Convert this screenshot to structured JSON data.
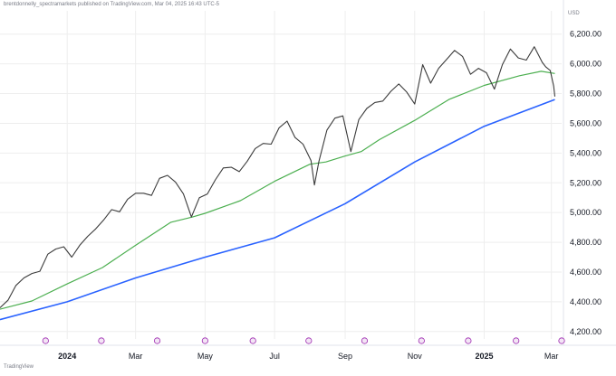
{
  "header": {
    "publish_note": "brentdonnelly_spectramarkets published on TradingView.com, Mar 04, 2025 16:43 UTC-5"
  },
  "footer": {
    "logo_text": "TradingView"
  },
  "colors": {
    "price": "#3b3b3b",
    "ma_fast": "#4caf50",
    "ma_slow": "#2962ff",
    "grid": "#eeeeee",
    "event_marker": "#9c27b0"
  },
  "chart_data": {
    "type": "line",
    "currency": "USD",
    "y_range": [
      4150,
      6320
    ],
    "y_ticks": [
      4200,
      4400,
      4600,
      4800,
      5000,
      5200,
      5400,
      5600,
      5800,
      6000,
      6200
    ],
    "y_tick_labels": [
      "4,200.00",
      "4,400.00",
      "4,600.00",
      "4,800.00",
      "5,000.00",
      "5,200.00",
      "5,400.00",
      "5,600.00",
      "5,800.00",
      "6,000.00",
      "6,200.00"
    ],
    "x_range": [
      "2023-11-03",
      "2025-03-10"
    ],
    "x_ticks": [
      {
        "date": "2024-01-01",
        "label": "2024",
        "bold": true
      },
      {
        "date": "2024-03-01",
        "label": "Mar",
        "bold": false
      },
      {
        "date": "2024-05-01",
        "label": "May",
        "bold": false
      },
      {
        "date": "2024-07-01",
        "label": "Jul",
        "bold": false
      },
      {
        "date": "2024-09-01",
        "label": "Sep",
        "bold": false
      },
      {
        "date": "2024-11-01",
        "label": "Nov",
        "bold": false
      },
      {
        "date": "2025-01-01",
        "label": "2025",
        "bold": true
      },
      {
        "date": "2025-03-01",
        "label": "Mar",
        "bold": false
      }
    ],
    "event_markers": [
      "2023-12-13",
      "2024-01-31",
      "2024-03-20",
      "2024-05-01",
      "2024-06-12",
      "2024-07-31",
      "2024-09-18",
      "2024-11-07",
      "2024-12-18",
      "2025-01-29",
      "2025-03-10"
    ],
    "series": [
      {
        "role": "price",
        "points": [
          [
            "2023-11-03",
            4360
          ],
          [
            "2023-11-10",
            4410
          ],
          [
            "2023-11-17",
            4510
          ],
          [
            "2023-11-24",
            4560
          ],
          [
            "2023-12-01",
            4590
          ],
          [
            "2023-12-08",
            4605
          ],
          [
            "2023-12-15",
            4720
          ],
          [
            "2023-12-22",
            4755
          ],
          [
            "2023-12-29",
            4770
          ],
          [
            "2024-01-05",
            4700
          ],
          [
            "2024-01-12",
            4780
          ],
          [
            "2024-01-19",
            4840
          ],
          [
            "2024-01-26",
            4890
          ],
          [
            "2024-02-02",
            4950
          ],
          [
            "2024-02-09",
            5020
          ],
          [
            "2024-02-16",
            5005
          ],
          [
            "2024-02-23",
            5090
          ],
          [
            "2024-03-01",
            5130
          ],
          [
            "2024-03-08",
            5130
          ],
          [
            "2024-03-15",
            5115
          ],
          [
            "2024-03-22",
            5230
          ],
          [
            "2024-03-29",
            5250
          ],
          [
            "2024-04-05",
            5205
          ],
          [
            "2024-04-12",
            5125
          ],
          [
            "2024-04-19",
            4970
          ],
          [
            "2024-04-26",
            5100
          ],
          [
            "2024-05-03",
            5125
          ],
          [
            "2024-05-10",
            5220
          ],
          [
            "2024-05-17",
            5300
          ],
          [
            "2024-05-24",
            5305
          ],
          [
            "2024-05-31",
            5275
          ],
          [
            "2024-06-07",
            5345
          ],
          [
            "2024-06-14",
            5430
          ],
          [
            "2024-06-21",
            5465
          ],
          [
            "2024-06-28",
            5460
          ],
          [
            "2024-07-05",
            5570
          ],
          [
            "2024-07-12",
            5615
          ],
          [
            "2024-07-19",
            5505
          ],
          [
            "2024-07-26",
            5460
          ],
          [
            "2024-08-02",
            5350
          ],
          [
            "2024-08-05",
            5185
          ],
          [
            "2024-08-09",
            5345
          ],
          [
            "2024-08-16",
            5555
          ],
          [
            "2024-08-23",
            5635
          ],
          [
            "2024-08-30",
            5650
          ],
          [
            "2024-09-06",
            5410
          ],
          [
            "2024-09-13",
            5625
          ],
          [
            "2024-09-20",
            5700
          ],
          [
            "2024-09-27",
            5740
          ],
          [
            "2024-10-04",
            5750
          ],
          [
            "2024-10-11",
            5815
          ],
          [
            "2024-10-18",
            5865
          ],
          [
            "2024-10-25",
            5810
          ],
          [
            "2024-11-01",
            5730
          ],
          [
            "2024-11-08",
            5995
          ],
          [
            "2024-11-15",
            5870
          ],
          [
            "2024-11-22",
            5970
          ],
          [
            "2024-11-29",
            6030
          ],
          [
            "2024-12-06",
            6090
          ],
          [
            "2024-12-13",
            6050
          ],
          [
            "2024-12-20",
            5930
          ],
          [
            "2024-12-27",
            5970
          ],
          [
            "2025-01-03",
            5940
          ],
          [
            "2025-01-10",
            5830
          ],
          [
            "2025-01-17",
            5995
          ],
          [
            "2025-01-24",
            6100
          ],
          [
            "2025-01-31",
            6040
          ],
          [
            "2025-02-07",
            6025
          ],
          [
            "2025-02-14",
            6115
          ],
          [
            "2025-02-21",
            6010
          ],
          [
            "2025-02-24",
            5980
          ],
          [
            "2025-02-28",
            5955
          ],
          [
            "2025-03-03",
            5850
          ],
          [
            "2025-03-04",
            5780
          ]
        ]
      },
      {
        "role": "ma_fast",
        "points": [
          [
            "2023-11-03",
            4350
          ],
          [
            "2023-12-01",
            4405
          ],
          [
            "2024-01-01",
            4520
          ],
          [
            "2024-02-01",
            4630
          ],
          [
            "2024-03-01",
            4780
          ],
          [
            "2024-04-01",
            4935
          ],
          [
            "2024-04-20",
            4970
          ],
          [
            "2024-05-01",
            4995
          ],
          [
            "2024-06-01",
            5080
          ],
          [
            "2024-07-01",
            5210
          ],
          [
            "2024-08-01",
            5325
          ],
          [
            "2024-08-15",
            5340
          ],
          [
            "2024-09-01",
            5380
          ],
          [
            "2024-09-15",
            5410
          ],
          [
            "2024-10-01",
            5490
          ],
          [
            "2024-11-01",
            5620
          ],
          [
            "2024-12-01",
            5760
          ],
          [
            "2025-01-01",
            5855
          ],
          [
            "2025-02-01",
            5920
          ],
          [
            "2025-02-20",
            5950
          ],
          [
            "2025-03-04",
            5935
          ]
        ]
      },
      {
        "role": "ma_slow",
        "points": [
          [
            "2023-11-03",
            4280
          ],
          [
            "2024-01-01",
            4400
          ],
          [
            "2024-03-01",
            4560
          ],
          [
            "2024-05-01",
            4700
          ],
          [
            "2024-07-01",
            4830
          ],
          [
            "2024-09-01",
            5060
          ],
          [
            "2024-11-01",
            5340
          ],
          [
            "2025-01-01",
            5580
          ],
          [
            "2025-03-04",
            5760
          ]
        ]
      }
    ]
  }
}
